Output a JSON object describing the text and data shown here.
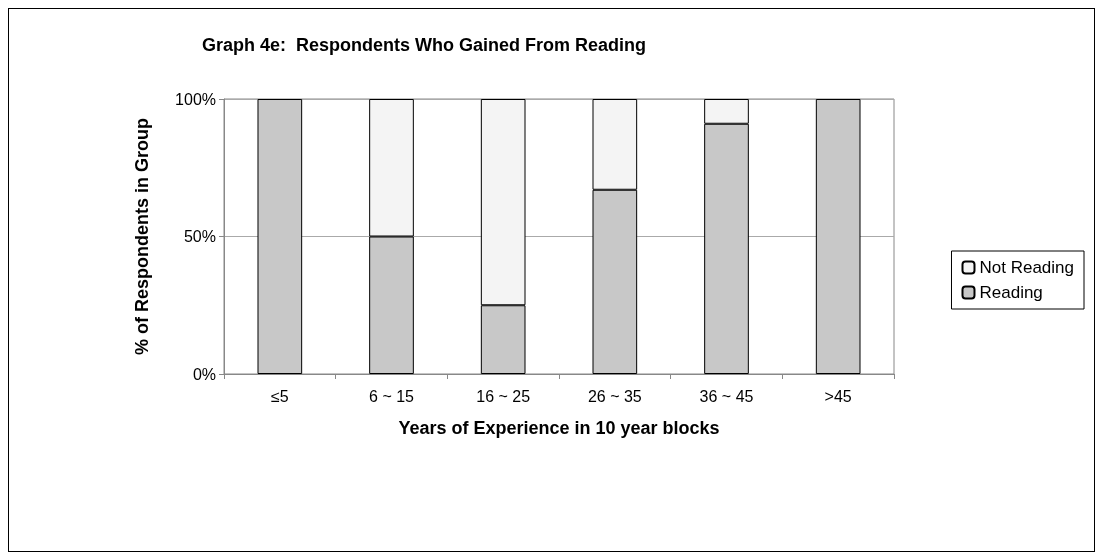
{
  "chart_data": {
    "type": "bar",
    "title": "Graph 4e:  Respondents Who Gained From Reading",
    "xlabel": "Years of Experience in 10 year blocks",
    "ylabel": "% of Respondents in Group",
    "categories": [
      "≤5",
      "6 ~ 15",
      "16 ~ 25",
      "26 ~ 35",
      "36 ~ 45",
      ">45"
    ],
    "series": [
      {
        "name": "Reading",
        "color": "#c8c8c8",
        "values": [
          100,
          50,
          25,
          67,
          91,
          100
        ]
      },
      {
        "name": "Not Reading",
        "color": "#f4f4f4",
        "values": [
          0,
          50,
          75,
          33,
          9,
          0
        ]
      }
    ],
    "stacked": true,
    "ylim": [
      0,
      100
    ],
    "yticks": [
      {
        "value": 0,
        "label": "0%"
      },
      {
        "value": 50,
        "label": "50%"
      },
      {
        "value": 100,
        "label": "100%"
      }
    ],
    "grid": "y",
    "legend": "right"
  }
}
